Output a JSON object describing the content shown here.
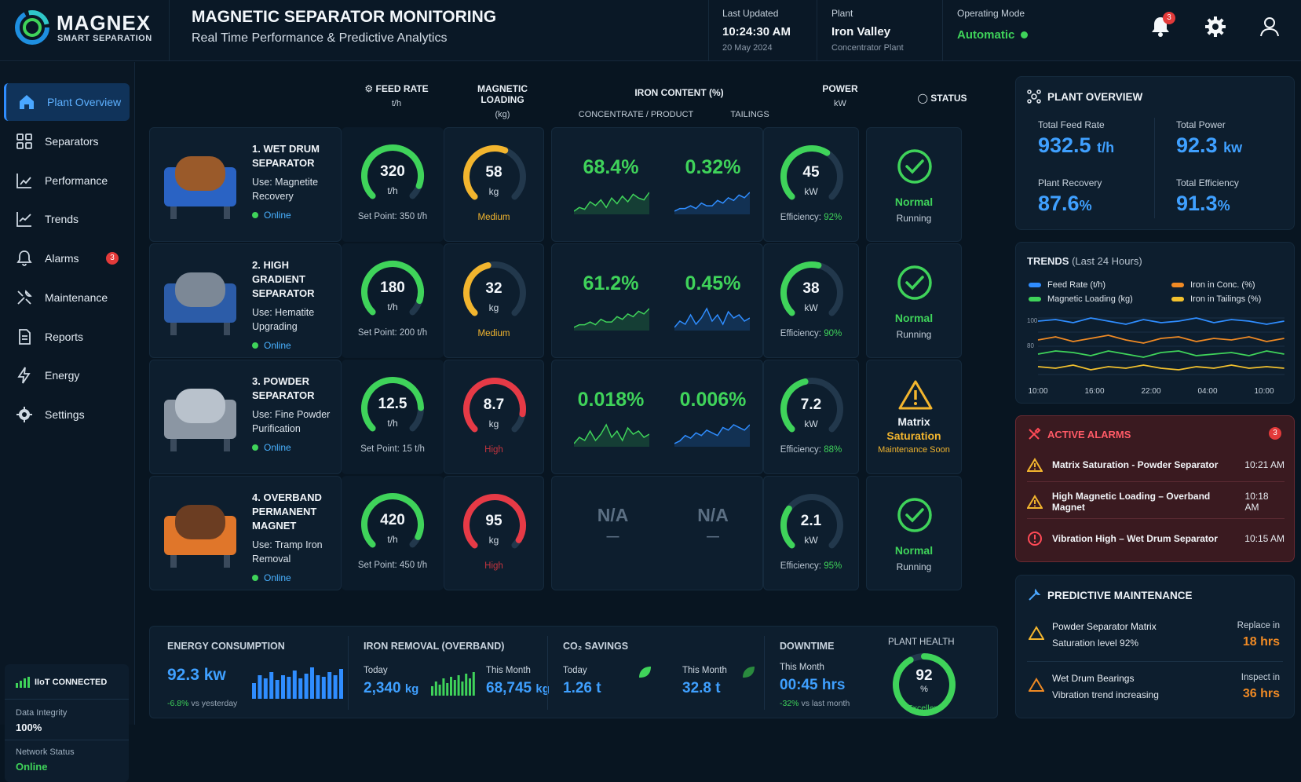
{
  "brand": {
    "name": "MAGNEX",
    "tagline": "SMART SEPARATION"
  },
  "header": {
    "title": "MAGNETIC SEPARATOR MONITORING",
    "subtitle": "Real Time Performance & Predictive Analytics",
    "last_updated_label": "Last Updated",
    "last_updated_time": "10:24:30 AM",
    "last_updated_date": "20 May 2024",
    "plant_label": "Plant",
    "plant_name": "Iron Valley",
    "plant_sub": "Concentrator Plant",
    "mode_label": "Operating Mode",
    "mode_value": "Automatic",
    "notif_count": "3"
  },
  "sidebar": {
    "items": [
      {
        "label": "Plant Overview",
        "icon": "home-icon"
      },
      {
        "label": "Separators",
        "icon": "grid-icon"
      },
      {
        "label": "Performance",
        "icon": "bar-chart-icon"
      },
      {
        "label": "Trends",
        "icon": "line-chart-icon"
      },
      {
        "label": "Alarms",
        "icon": "bell-icon",
        "badge": "3"
      },
      {
        "label": "Maintenance",
        "icon": "wrench-icon"
      },
      {
        "label": "Reports",
        "icon": "document-icon"
      },
      {
        "label": "Energy",
        "icon": "lightning-icon"
      },
      {
        "label": "Settings",
        "icon": "gear-icon"
      }
    ],
    "iot": {
      "title": "IIoT CONNECTED",
      "integrity_label": "Data Integrity",
      "integrity_value": "100%",
      "network_label": "Network Status",
      "network_value": "Online"
    }
  },
  "table": {
    "headers": {
      "feed": "FEED RATE",
      "feed_unit": "t/h",
      "mag": "MAGNETIC LOADING",
      "mag_unit": "(kg)",
      "iron": "IRON CONTENT (%)",
      "conc": "CONCENTRATE / PRODUCT",
      "tail": "TAILINGS",
      "power": "POWER",
      "power_unit": "kW",
      "status": "STATUS"
    },
    "rows": [
      {
        "name1": "1. WET DRUM",
        "name2": "SEPARATOR",
        "use1": "Use: Magnetite",
        "use2": "Recovery",
        "online": "Online",
        "feed": "320",
        "feed_unit": "t/h",
        "feed_level": 0.91,
        "setpoint": "Set Point: 350 t/h",
        "mag": "58",
        "mag_unit": "kg",
        "mag_level": 0.58,
        "mag_status": "Medium",
        "conc": "68.4%",
        "tail": "0.32%",
        "power": "45",
        "power_unit": "kW",
        "power_level": 0.62,
        "eff_label": "Efficiency: ",
        "eff": "92%",
        "status1": "Normal",
        "status2": "Running",
        "status_type": "ok"
      },
      {
        "name1": "2. HIGH GRADIENT",
        "name2": "SEPARATOR",
        "use1": "Use: Hematite",
        "use2": "Upgrading",
        "online": "Online",
        "feed": "180",
        "feed_unit": "t/h",
        "feed_level": 0.9,
        "setpoint": "Set Point: 200 t/h",
        "mag": "32",
        "mag_unit": "kg",
        "mag_level": 0.45,
        "mag_status": "Medium",
        "conc": "61.2%",
        "tail": "0.45%",
        "power": "38",
        "power_unit": "kW",
        "power_level": 0.55,
        "eff_label": "Efficiency: ",
        "eff": "90%",
        "status1": "Normal",
        "status2": "Running",
        "status_type": "ok"
      },
      {
        "name1": "3. POWDER",
        "name2": "SEPARATOR",
        "use1": "Use: Fine Powder",
        "use2": "Purification",
        "online": "Online",
        "feed": "12.5",
        "feed_unit": "t/h",
        "feed_level": 0.83,
        "setpoint": "Set Point: 15 t/h",
        "mag": "8.7",
        "mag_unit": "kg",
        "mag_level": 0.87,
        "mag_status": "High",
        "conc": "0.018%",
        "tail": "0.006%",
        "power": "7.2",
        "power_unit": "kW",
        "power_level": 0.45,
        "eff_label": "Efficiency: ",
        "eff": "88%",
        "status1": "Matrix",
        "status1b": "Saturation",
        "status2": "Maintenance Soon",
        "status_type": "warn"
      },
      {
        "name1": "4. OVERBAND",
        "name2": "PERMANENT MAGNET",
        "use1": "Use: Tramp Iron",
        "use2": "Removal",
        "online": "Online",
        "feed": "420",
        "feed_unit": "t/h",
        "feed_level": 0.93,
        "setpoint": "Set Point: 450 t/h",
        "mag": "95",
        "mag_unit": "kg",
        "mag_level": 0.95,
        "mag_status": "High",
        "conc": "N/A",
        "tail": "N/A",
        "dash": "—",
        "power": "2.1",
        "power_unit": "kW",
        "power_level": 0.3,
        "eff_label": "Efficiency: ",
        "eff": "95%",
        "status1": "Normal",
        "status2": "Running",
        "status_type": "ok"
      }
    ]
  },
  "bottom": {
    "energy": {
      "title": "ENERGY CONSUMPTION",
      "value": "92.3 kw",
      "delta": "-6.8%",
      "delta_note": "vs yesterday"
    },
    "iron_removal": {
      "title": "IRON REMOVAL (OVERBAND)",
      "today_label": "Today",
      "today_value": "2,340",
      "today_unit": "kg",
      "month_label": "This Month",
      "month_value": "68,745",
      "month_unit": "kg"
    },
    "co2": {
      "title": "CO₂ SAVINGS",
      "today_label": "Today",
      "today_value": "1.26 t",
      "month_label": "This Month",
      "month_value": "32.8 t"
    },
    "downtime": {
      "title": "DOWNTIME",
      "label": "This Month",
      "value": "00:45 hrs",
      "delta": "-32%",
      "delta_note": "vs last month"
    },
    "health": {
      "title": "PLANT HEALTH",
      "value": "92",
      "unit": "%",
      "status": "Excellent",
      "level": 0.92
    }
  },
  "overview": {
    "title": "PLANT OVERVIEW",
    "feed_label": "Total Feed Rate",
    "feed_value": "932.5",
    "feed_unit": "t/h",
    "power_label": "Total Power",
    "power_value": "92.3",
    "power_unit": "kw",
    "recovery_label": "Plant Recovery",
    "recovery_value": "87.6",
    "recovery_unit": "%",
    "eff_label": "Total Efficiency",
    "eff_value": "91.3",
    "eff_unit": "%"
  },
  "trends": {
    "title": "TRENDS",
    "subtitle": "(Last 24 Hours)",
    "legend": [
      {
        "name": "Feed Rate (t/h)",
        "color": "#2f8dff"
      },
      {
        "name": "Iron in Conc. (%)",
        "color": "#f08a24"
      },
      {
        "name": "Magnetic Loading (kg)",
        "color": "#3fd35a"
      },
      {
        "name": "Iron in Tailings (%)",
        "color": "#f2c12e"
      }
    ],
    "x_labels": [
      "10:00",
      "16:00",
      "22:00",
      "04:00",
      "10:00"
    ],
    "y_labels": [
      "100",
      "80"
    ]
  },
  "alarms": {
    "title": "ACTIVE ALARMS",
    "count": "3",
    "items": [
      {
        "text": "Matrix Saturation - Powder Separator",
        "time": "10:21 AM",
        "type": "warn"
      },
      {
        "text": "High Magnetic Loading – Overband Magnet",
        "time": "10:18 AM",
        "type": "warn"
      },
      {
        "text": "Vibration High – Wet Drum Separator",
        "time": "10:15 AM",
        "type": "error"
      }
    ]
  },
  "maintenance": {
    "title": "PREDICTIVE MAINTENANCE",
    "items": [
      {
        "line1": "Powder Separator Matrix",
        "line2": "Saturation level 92%",
        "action": "Replace in",
        "value": "18 hrs"
      },
      {
        "line1": "Wet Drum Bearings",
        "line2": "Vibration trend increasing",
        "action": "Inspect in",
        "value": "36 hrs"
      }
    ]
  },
  "colors": {
    "accent": "#2f8dff",
    "ok": "#3fd35a",
    "warn": "#f2b52e",
    "danger": "#e63a46"
  }
}
